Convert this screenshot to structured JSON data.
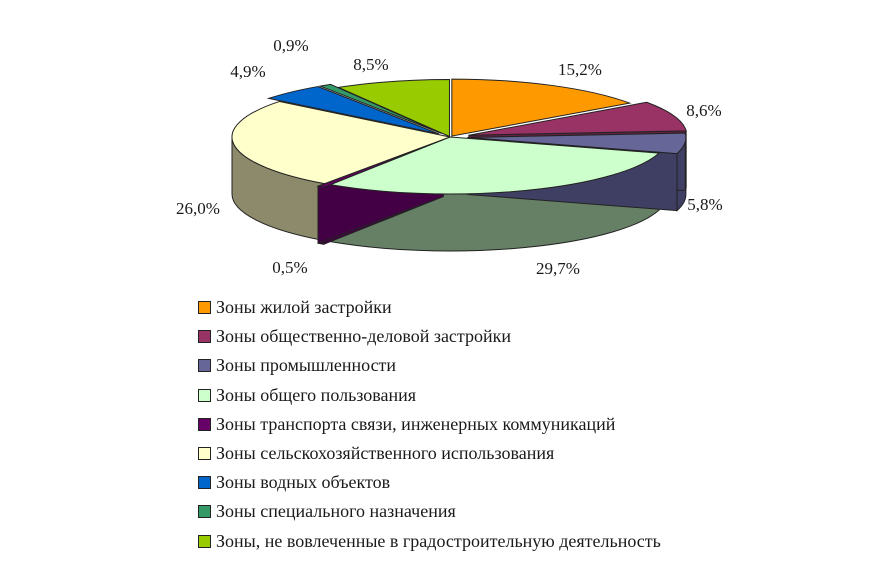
{
  "chart_data": {
    "type": "pie",
    "style": "3d-exploded",
    "legend_position": "bottom",
    "slices": [
      {
        "label": "Зоны жилой застройки",
        "value": 15.2,
        "display": "15,2%",
        "color": "#ff9900",
        "side_color": "#b36b00"
      },
      {
        "label": "Зоны общественно-деловой застройки",
        "value": 8.6,
        "display": "8,6%",
        "color": "#993366",
        "side_color": "#662244"
      },
      {
        "label": "Зоны промышленности",
        "value": 5.8,
        "display": "5,8%",
        "color": "#666699",
        "side_color": "#3f3f63"
      },
      {
        "label": "Зоны общего пользования",
        "value": 29.7,
        "display": "29,7%",
        "color": "#ccffcc",
        "side_color": "#668066"
      },
      {
        "label": "Зоны транспорта связи, инженерных коммуникаций",
        "value": 0.5,
        "display": "0,5%",
        "color": "#660066",
        "side_color": "#440044"
      },
      {
        "label": "Зоны сельскохозяйственного использования",
        "value": 26.0,
        "display": "26,0%",
        "color": "#ffffcc",
        "side_color": "#8c8a6a"
      },
      {
        "label": "Зоны водных объектов",
        "value": 4.9,
        "display": "4,9%",
        "color": "#0066cc",
        "side_color": "#003f80"
      },
      {
        "label": "Зоны специального назначения",
        "value": 0.9,
        "display": "0,9%",
        "color": "#339966",
        "side_color": "#1f5c3d"
      },
      {
        "label": "Зоны, не вовлеченные в градостроительную деятельность",
        "value": 8.5,
        "display": "8,5%",
        "color": "#99cc00",
        "side_color": "#5c7a00"
      }
    ]
  }
}
